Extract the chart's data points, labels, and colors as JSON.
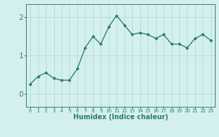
{
  "x": [
    0,
    1,
    2,
    3,
    4,
    5,
    6,
    7,
    8,
    9,
    10,
    11,
    12,
    13,
    14,
    15,
    16,
    17,
    18,
    19,
    20,
    21,
    22,
    23
  ],
  "y": [
    0.25,
    0.45,
    0.55,
    0.4,
    0.35,
    0.35,
    0.65,
    1.2,
    1.5,
    1.3,
    1.75,
    2.05,
    1.8,
    1.55,
    1.6,
    1.55,
    1.45,
    1.55,
    1.3,
    1.3,
    1.2,
    1.45,
    1.55,
    1.4
  ],
  "xlabel": "Humidex (Indice chaleur)",
  "line_color": "#2e7d6e",
  "bg_color": "#d4f0ee",
  "grid_color": "#b8dbd8",
  "axis_color": "#2e7d6e",
  "ylim": [
    -0.35,
    2.35
  ],
  "xlim": [
    -0.5,
    23.5
  ],
  "yticks": [
    0,
    1,
    2
  ],
  "xtick_labels": [
    "0",
    "1",
    "2",
    "3",
    "4",
    "5",
    "6",
    "7",
    "8",
    "9",
    "10",
    "11",
    "12",
    "13",
    "14",
    "15",
    "16",
    "17",
    "18",
    "19",
    "20",
    "21",
    "22",
    "23"
  ]
}
